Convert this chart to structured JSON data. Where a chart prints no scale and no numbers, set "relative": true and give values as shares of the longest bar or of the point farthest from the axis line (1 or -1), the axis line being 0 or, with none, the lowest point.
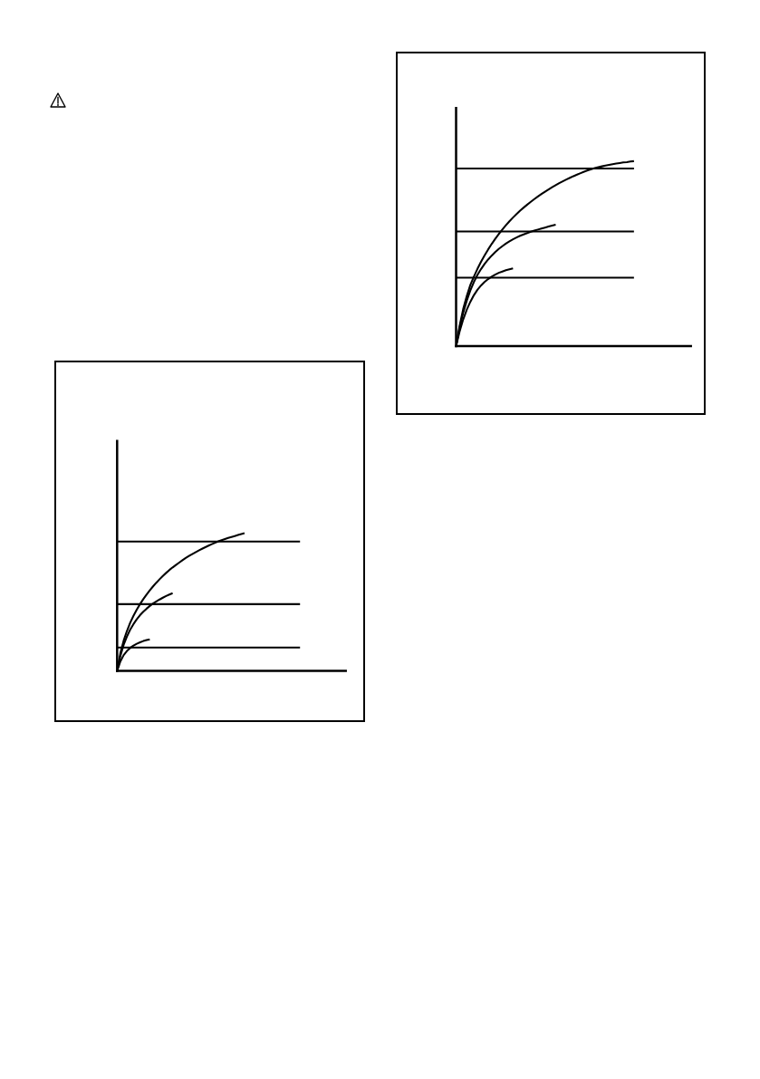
{
  "chart_data": [
    {
      "type": "line",
      "relative": true,
      "categories": [
        null,
        null,
        null,
        null,
        null,
        null,
        null,
        null,
        null,
        null,
        null,
        null,
        null,
        null,
        null,
        null,
        null,
        null,
        null,
        null,
        null,
        null,
        null,
        null,
        null,
        null,
        null,
        null,
        null,
        null,
        null,
        null,
        null,
        null,
        null,
        null,
        null,
        null,
        null,
        null,
        null,
        null,
        null,
        null,
        null,
        null,
        null,
        null,
        null,
        null,
        null,
        null,
        null,
        null,
        null,
        null,
        null,
        null,
        null,
        null,
        null,
        null,
        null,
        null,
        null,
        null,
        null,
        null,
        null,
        null,
        null
      ],
      "series": [
        {
          "color": "#000000",
          "values": [
            0.94,
            0.94,
            0.94,
            0.94,
            0.94,
            0.94,
            0.94,
            0.94,
            0.94,
            0.94,
            0.94,
            0.94,
            0.94,
            0.94,
            0.94,
            0.94,
            0.94,
            0.94,
            0.94,
            0.94,
            0.94,
            0.94,
            0.94,
            0.94,
            0.94,
            0.94,
            0.94,
            0.94,
            0.94,
            0.94,
            0.94,
            0.94,
            0.94,
            0.94,
            0.94,
            0.94,
            0.94,
            0.94,
            0.94,
            0.94,
            0.94,
            0.94,
            0.94,
            0.94,
            0.94,
            0.94,
            0.94,
            0.94,
            0.94,
            0.94,
            0.94,
            0.94,
            0.94,
            0.94,
            0.94,
            0.94,
            0.94,
            null,
            null,
            null,
            null,
            null,
            null,
            null,
            null,
            null,
            null,
            null,
            null,
            null,
            null
          ]
        },
        {
          "color": "#000000",
          "values": [
            0.485,
            0.485,
            0.485,
            0.485,
            0.485,
            0.485,
            0.485,
            0.485,
            0.485,
            0.485,
            0.485,
            0.485,
            0.485,
            0.485,
            0.485,
            0.485,
            0.485,
            0.485,
            0.485,
            0.485,
            0.485,
            0.485,
            0.485,
            0.485,
            0.485,
            0.485,
            0.485,
            0.485,
            0.485,
            0.485,
            0.485,
            0.485,
            0.485,
            0.485,
            0.485,
            0.485,
            0.485,
            0.485,
            0.485,
            0.485,
            0.485,
            0.485,
            0.485,
            0.485,
            0.485,
            0.485,
            0.485,
            0.485,
            0.485,
            0.485,
            0.485,
            0.485,
            0.485,
            0.485,
            0.485,
            0.485,
            0.485,
            null,
            null,
            null,
            null,
            null,
            null,
            null,
            null,
            null,
            null,
            null,
            null,
            null,
            null
          ]
        },
        {
          "color": "#000000",
          "values": [
            0.17,
            0.17,
            0.17,
            0.17,
            0.17,
            0.17,
            0.17,
            0.17,
            0.17,
            0.17,
            0.17,
            0.17,
            0.17,
            0.17,
            0.17,
            0.17,
            0.17,
            0.17,
            0.17,
            0.17,
            0.17,
            0.17,
            0.17,
            0.17,
            0.17,
            0.17,
            0.17,
            0.17,
            0.17,
            0.17,
            0.17,
            0.17,
            0.17,
            0.17,
            0.17,
            0.17,
            0.17,
            0.17,
            0.17,
            0.17,
            0.17,
            0.17,
            0.17,
            0.17,
            0.17,
            0.17,
            0.17,
            0.17,
            0.17,
            0.17,
            0.17,
            0.17,
            0.17,
            0.17,
            0.17,
            0.17,
            0.17,
            null,
            null,
            null,
            null,
            null,
            null,
            null,
            null,
            null,
            null,
            null,
            null,
            null,
            null
          ]
        },
        {
          "color": "#000000",
          "values": [
            0,
            0.13,
            0.22,
            0.29,
            0.35,
            0.4,
            0.445,
            0.485,
            0.521,
            0.554,
            0.585,
            0.614,
            0.641,
            0.666,
            0.69,
            0.712,
            0.733,
            0.752,
            0.77,
            0.787,
            0.804,
            0.82,
            0.835,
            0.849,
            0.862,
            0.875,
            0.887,
            0.899,
            0.91,
            0.921,
            0.931,
            0.941,
            0.95,
            0.958,
            0.966,
            0.973,
            0.98,
            0.987,
            0.994,
            1.0,
            null,
            null,
            null,
            null,
            null,
            null,
            null,
            null,
            null,
            null,
            null,
            null,
            null,
            null,
            null,
            null,
            null,
            null,
            null,
            null,
            null,
            null,
            null,
            null,
            null,
            null,
            null,
            null,
            null,
            null,
            null
          ]
        },
        {
          "color": "#000000",
          "values": [
            0,
            0.11,
            0.19,
            0.25,
            0.3,
            0.34,
            0.375,
            0.405,
            0.43,
            0.452,
            0.472,
            0.49,
            0.505,
            0.519,
            0.532,
            0.544,
            0.555,
            0.565,
            null,
            null,
            null,
            null,
            null,
            null,
            null,
            null,
            null,
            null,
            null,
            null,
            null,
            null,
            null,
            null,
            null,
            null,
            null,
            null,
            null,
            null,
            null,
            null,
            null,
            null,
            null,
            null,
            null,
            null,
            null,
            null,
            null,
            null,
            null,
            null,
            null,
            null,
            null,
            null,
            null,
            null,
            null,
            null,
            null,
            null,
            null,
            null,
            null,
            null,
            null,
            null,
            null
          ]
        },
        {
          "color": "#000000",
          "values": [
            0,
            0.07,
            0.115,
            0.145,
            0.167,
            0.184,
            0.197,
            0.208,
            0.217,
            0.224,
            0.23,
            null,
            null,
            null,
            null,
            null,
            null,
            null,
            null,
            null,
            null,
            null,
            null,
            null,
            null,
            null,
            null,
            null,
            null,
            null,
            null,
            null,
            null,
            null,
            null,
            null,
            null,
            null,
            null,
            null,
            null,
            null,
            null,
            null,
            null,
            null,
            null,
            null,
            null,
            null,
            null,
            null,
            null,
            null,
            null,
            null,
            null,
            null,
            null,
            null,
            null,
            null,
            null,
            null,
            null,
            null,
            null,
            null,
            null,
            null,
            null
          ]
        }
      ]
    },
    {
      "type": "line",
      "relative": true,
      "categories": [
        null,
        null,
        null,
        null,
        null,
        null,
        null,
        null,
        null,
        null,
        null,
        null,
        null,
        null,
        null,
        null,
        null,
        null,
        null,
        null,
        null,
        null,
        null,
        null,
        null,
        null,
        null,
        null,
        null,
        null,
        null,
        null,
        null,
        null,
        null,
        null,
        null,
        null,
        null,
        null,
        null,
        null,
        null,
        null,
        null,
        null,
        null,
        null,
        null,
        null,
        null,
        null,
        null,
        null,
        null,
        null,
        null,
        null,
        null,
        null,
        null,
        null,
        null,
        null,
        null,
        null,
        null
      ],
      "series": [
        {
          "color": "#000000",
          "values": [
            0.96,
            0.96,
            0.96,
            0.96,
            0.96,
            0.96,
            0.96,
            0.96,
            0.96,
            0.96,
            0.96,
            0.96,
            0.96,
            0.96,
            0.96,
            0.96,
            0.96,
            0.96,
            0.96,
            0.96,
            0.96,
            0.96,
            0.96,
            0.96,
            0.96,
            0.96,
            0.96,
            0.96,
            0.96,
            0.96,
            0.96,
            0.96,
            0.96,
            0.96,
            0.96,
            0.96,
            0.96,
            0.96,
            0.96,
            0.96,
            0.96,
            0.96,
            0.96,
            0.96,
            0.96,
            0.96,
            0.96,
            0.96,
            0.96,
            0.96,
            0.96,
            null,
            null,
            null,
            null,
            null,
            null,
            null,
            null,
            null,
            null,
            null,
            null,
            null,
            null,
            null,
            null
          ]
        },
        {
          "color": "#000000",
          "values": [
            0.62,
            0.62,
            0.62,
            0.62,
            0.62,
            0.62,
            0.62,
            0.62,
            0.62,
            0.62,
            0.62,
            0.62,
            0.62,
            0.62,
            0.62,
            0.62,
            0.62,
            0.62,
            0.62,
            0.62,
            0.62,
            0.62,
            0.62,
            0.62,
            0.62,
            0.62,
            0.62,
            0.62,
            0.62,
            0.62,
            0.62,
            0.62,
            0.62,
            0.62,
            0.62,
            0.62,
            0.62,
            0.62,
            0.62,
            0.62,
            0.62,
            0.62,
            0.62,
            0.62,
            0.62,
            0.62,
            0.62,
            0.62,
            0.62,
            0.62,
            0.62,
            null,
            null,
            null,
            null,
            null,
            null,
            null,
            null,
            null,
            null,
            null,
            null,
            null,
            null,
            null,
            null
          ]
        },
        {
          "color": "#000000",
          "values": [
            0.37,
            0.37,
            0.37,
            0.37,
            0.37,
            0.37,
            0.37,
            0.37,
            0.37,
            0.37,
            0.37,
            0.37,
            0.37,
            0.37,
            0.37,
            0.37,
            0.37,
            0.37,
            0.37,
            0.37,
            0.37,
            0.37,
            0.37,
            0.37,
            0.37,
            0.37,
            0.37,
            0.37,
            0.37,
            0.37,
            0.37,
            0.37,
            0.37,
            0.37,
            0.37,
            0.37,
            0.37,
            0.37,
            0.37,
            0.37,
            0.37,
            0.37,
            0.37,
            0.37,
            0.37,
            0.37,
            0.37,
            0.37,
            0.37,
            0.37,
            0.37,
            null,
            null,
            null,
            null,
            null,
            null,
            null,
            null,
            null,
            null,
            null,
            null,
            null,
            null,
            null,
            null
          ]
        },
        {
          "color": "#000000",
          "values": [
            0,
            0.11,
            0.2,
            0.27,
            0.33,
            0.375,
            0.417,
            0.455,
            0.49,
            0.522,
            0.552,
            0.58,
            0.606,
            0.63,
            0.653,
            0.675,
            0.695,
            0.714,
            0.732,
            0.749,
            0.765,
            0.78,
            0.795,
            0.809,
            0.822,
            0.835,
            0.847,
            0.859,
            0.87,
            0.881,
            0.891,
            0.901,
            0.91,
            0.919,
            0.927,
            0.935,
            0.943,
            0.95,
            0.957,
            0.963,
            0.968,
            0.972,
            0.976,
            0.98,
            0.984,
            0.987,
            0.99,
            0.993,
            0.995,
            0.998,
            1.0,
            null,
            null,
            null,
            null,
            null,
            null,
            null,
            null,
            null,
            null,
            null,
            null,
            null,
            null,
            null,
            null
          ]
        },
        {
          "color": "#000000",
          "values": [
            0,
            0.1,
            0.18,
            0.245,
            0.3,
            0.346,
            0.384,
            0.416,
            0.444,
            0.468,
            0.489,
            0.508,
            0.525,
            0.54,
            0.554,
            0.566,
            0.577,
            0.587,
            0.596,
            0.604,
            0.611,
            0.618,
            0.624,
            0.63,
            0.636,
            0.641,
            0.646,
            0.651,
            0.656,
            null,
            null,
            null,
            null,
            null,
            null,
            null,
            null,
            null,
            null,
            null,
            null,
            null,
            null,
            null,
            null,
            null,
            null,
            null,
            null,
            null,
            null,
            null,
            null,
            null,
            null,
            null,
            null,
            null,
            null,
            null,
            null,
            null,
            null,
            null,
            null,
            null,
            null
          ]
        },
        {
          "color": "#000000",
          "values": [
            0,
            0.079,
            0.144,
            0.196,
            0.239,
            0.275,
            0.304,
            0.327,
            0.346,
            0.362,
            0.375,
            0.386,
            0.396,
            0.403,
            0.41,
            0.415,
            0.42,
            null,
            null,
            null,
            null,
            null,
            null,
            null,
            null,
            null,
            null,
            null,
            null,
            null,
            null,
            null,
            null,
            null,
            null,
            null,
            null,
            null,
            null,
            null,
            null,
            null,
            null,
            null,
            null,
            null,
            null,
            null,
            null,
            null,
            null,
            null,
            null,
            null,
            null,
            null,
            null,
            null,
            null,
            null,
            null,
            null,
            null,
            null,
            null,
            null,
            null
          ]
        }
      ]
    }
  ]
}
